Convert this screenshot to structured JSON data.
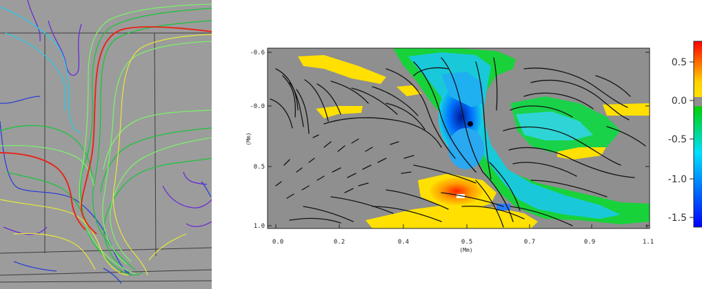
{
  "left_panel": {
    "colors": {
      "background": "#9c9c9c",
      "red": "#e8261a",
      "yellow": "#e9e83a",
      "light_green": "#7cf06b",
      "green": "#19c43c",
      "cyan": "#2ec9e6",
      "blue": "#2b3fd6",
      "purple": "#6a2ad6"
    }
  },
  "right_panel": {
    "x_axis": {
      "label": "(Mm)",
      "ticks": [
        "0.0",
        "0.2",
        "0.4",
        "0.5",
        "0.7",
        "0.9",
        "1.1"
      ]
    },
    "y_axis": {
      "label": "(Mm)",
      "ticks": [
        "-0.6",
        "-0.0",
        "0.5",
        "1.0"
      ]
    },
    "colorbar": {
      "ticks": [
        "0.5",
        "0.0",
        "-0.5",
        "-1.0",
        "-1.5"
      ],
      "colors": [
        "#ff1a00",
        "#ffe000",
        "#8f8f8f",
        "#00e000",
        "#00e0ff",
        "#0000ff"
      ]
    },
    "colors": {
      "background_field": "#8f8f8f",
      "streamline": "#111111"
    }
  }
}
